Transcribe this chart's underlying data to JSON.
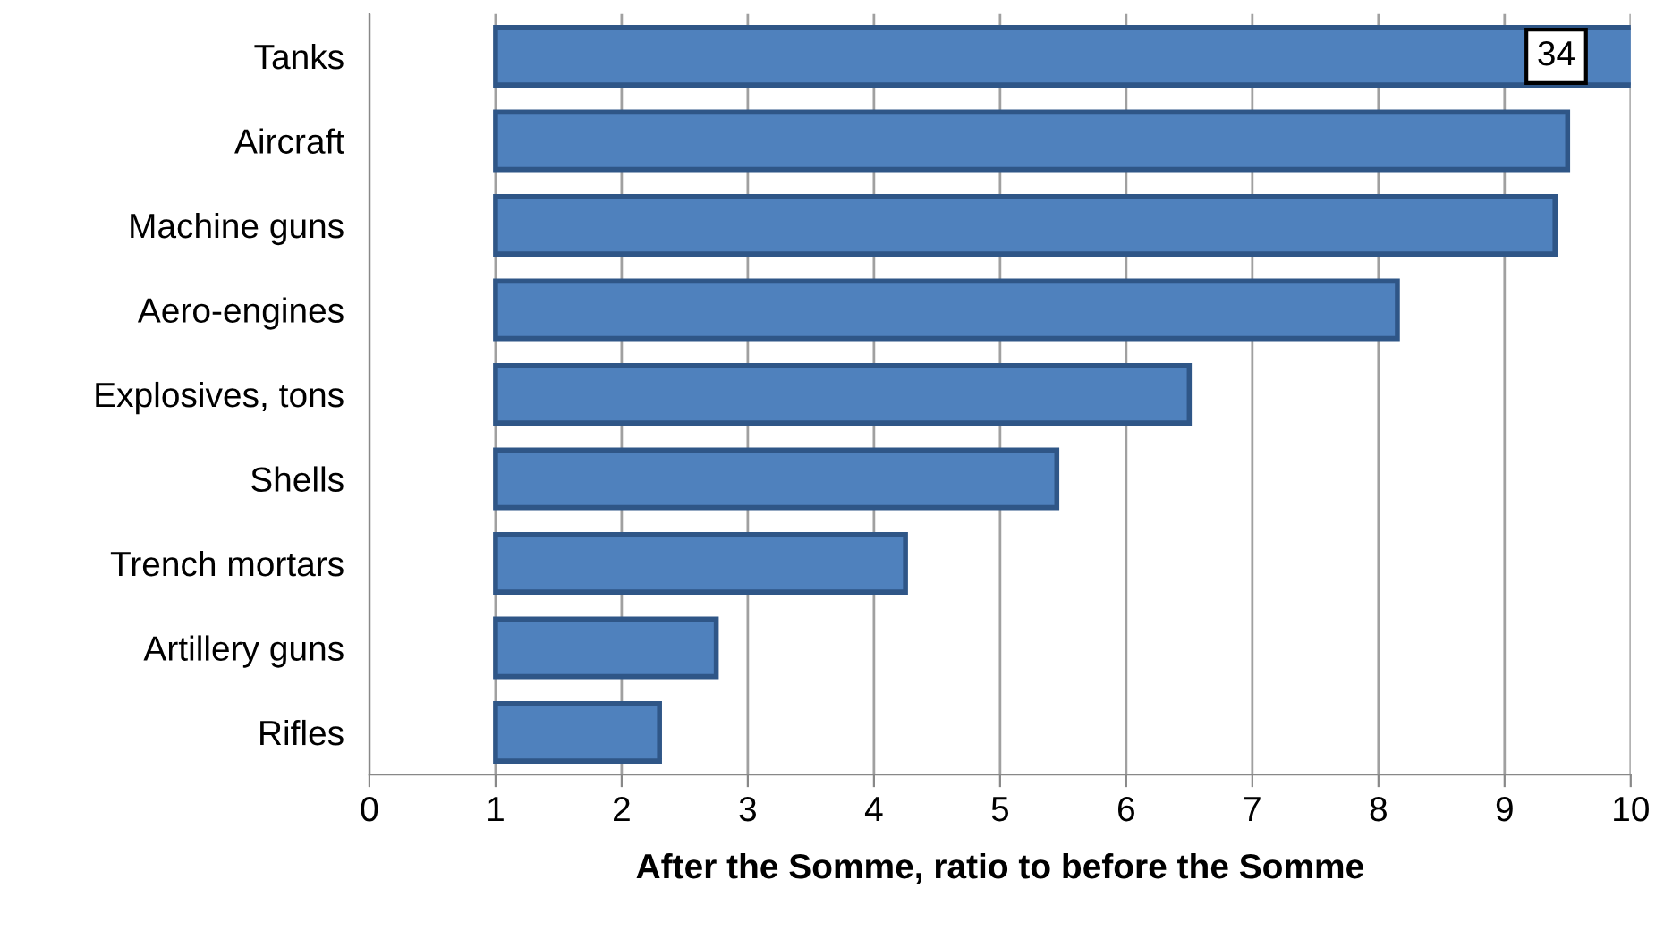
{
  "chart_data": {
    "type": "bar",
    "orientation": "horizontal",
    "categories": [
      "Tanks",
      "Aircraft",
      "Machine guns",
      "Aero-engines",
      "Explosives, tons",
      "Shells",
      "Trench mortars",
      "Artillery guns",
      "Rifles"
    ],
    "base": [
      1,
      1,
      1,
      1,
      1,
      1,
      1,
      1,
      1
    ],
    "values": [
      33,
      8.5,
      8.4,
      7.15,
      5.5,
      4.45,
      3.25,
      1.75,
      1.3
    ],
    "value_labels": [
      "34",
      null,
      null,
      null,
      null,
      null,
      null,
      null,
      null
    ],
    "color": "#4f81bd",
    "xlabel": "After the Somme, ratio to before the Somme",
    "xlim": [
      0,
      10
    ],
    "xticks": [
      0,
      1,
      2,
      3,
      4,
      5,
      6,
      7,
      8,
      9,
      10
    ],
    "grid": "x",
    "legend": false
  }
}
